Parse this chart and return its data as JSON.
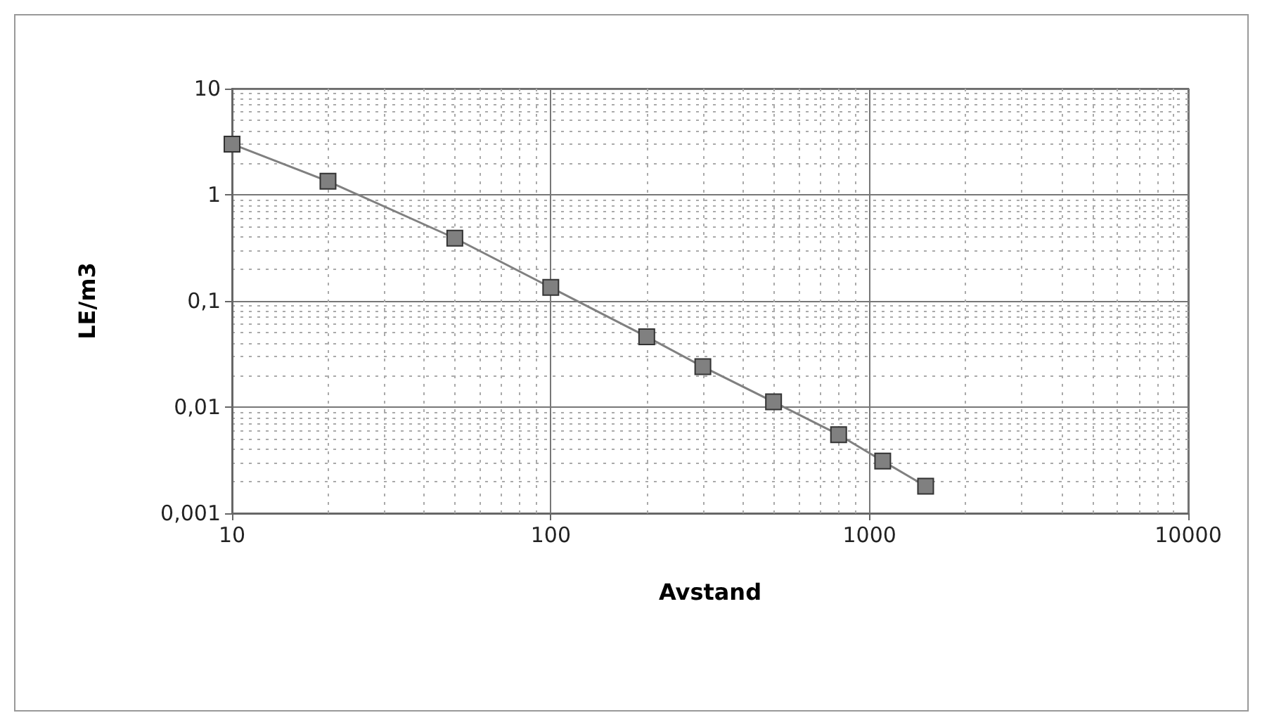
{
  "chart_data": {
    "type": "line",
    "xlabel": "Avstand",
    "ylabel": "LE/m3",
    "log": "xy",
    "grid": true,
    "marker": "square",
    "line_style": "solid",
    "x": [
      10,
      20,
      50,
      100,
      200,
      300,
      500,
      800,
      1100,
      1500
    ],
    "series": [
      {
        "color": "#808080",
        "values": [
          3,
          1.34,
          0.39,
          0.134,
          0.046,
          0.024,
          0.0112,
          0.0055,
          0.0031,
          0.0018
        ]
      }
    ],
    "xlim": [
      10,
      10000
    ],
    "xticks": [
      10,
      100,
      1000,
      10000
    ],
    "ylim": [
      0.001,
      10
    ],
    "yticks": [
      {
        "value": 0.001,
        "label": "0,001"
      },
      {
        "value": 0.01,
        "label": "0,01"
      },
      {
        "value": 0.1,
        "label": "0,1"
      },
      1,
      10
    ]
  }
}
